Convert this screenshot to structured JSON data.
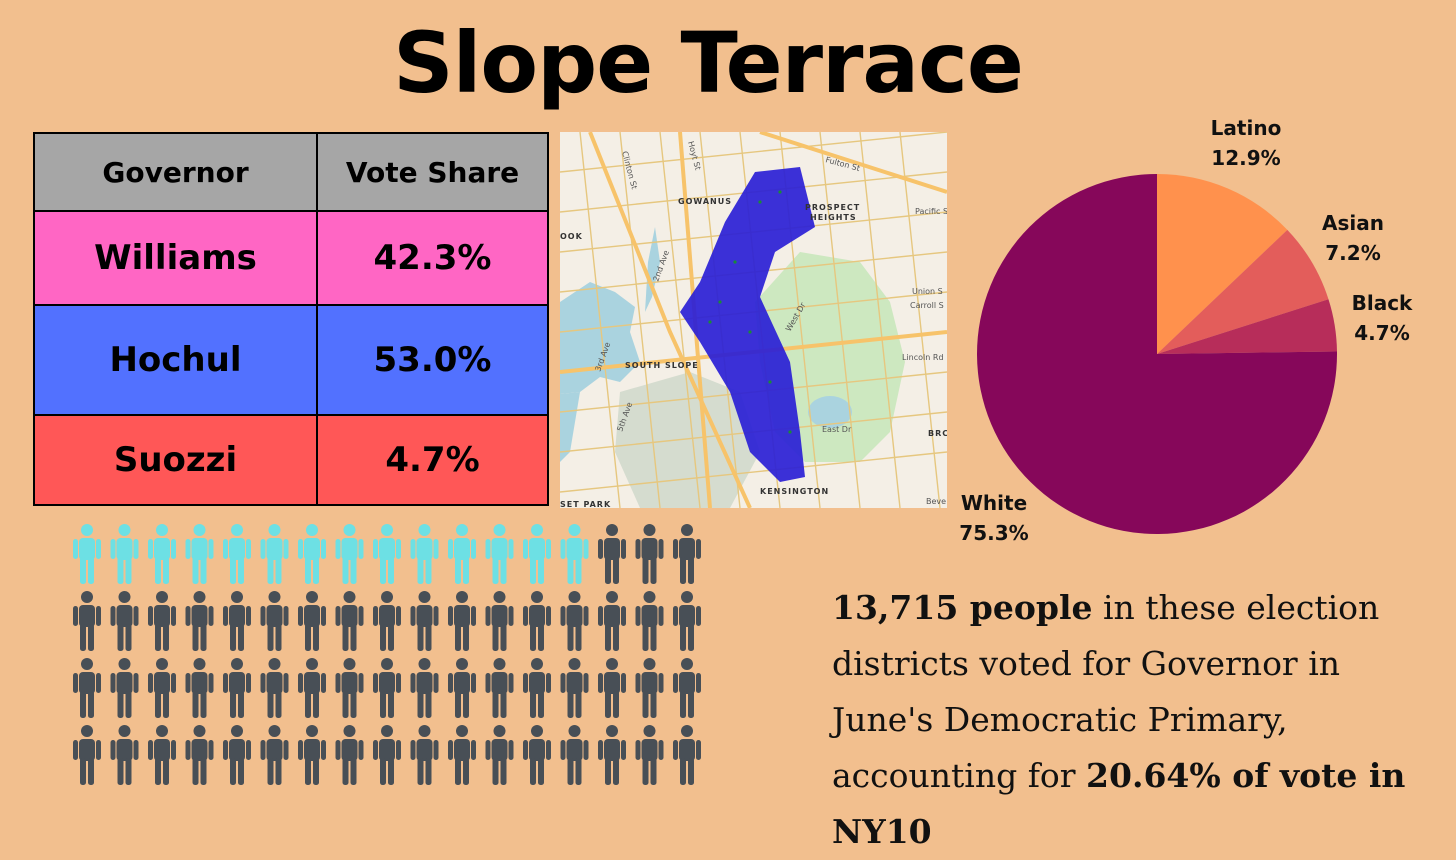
{
  "title": "Slope Terrace",
  "table": {
    "headers": [
      "Governor",
      "Vote Share"
    ],
    "rows": [
      {
        "name": "Williams",
        "share": "42.3%",
        "color": "#ff66c4"
      },
      {
        "name": "Hochul",
        "share": "53.0%",
        "color": "#5271ff"
      },
      {
        "name": "Suozzi",
        "share": "4.7%",
        "color": "#ff5757"
      }
    ],
    "header_color": "#a6a6a6"
  },
  "map": {
    "labels": [
      "Fulton St",
      "GOWANUS",
      "PROSPECT",
      "HEIGHTS",
      "Pacific S",
      "Union S",
      "Carroll S",
      "Lincoln Rd",
      "SOUTH SLOPE",
      "West Dr",
      "East Dr",
      "BRC",
      "KENSINGTON",
      "SET PARK",
      "Hoyt St",
      "Clinton St",
      "2nd Ave",
      "3rd Ave",
      "5th Ave",
      "OOK",
      "Beve"
    ]
  },
  "chart_data": {
    "type": "pie",
    "title": "",
    "slices": [
      {
        "label": "Latino",
        "value": 12.9,
        "display": "12.9%",
        "color": "#ff914d"
      },
      {
        "label": "Asian",
        "value": 7.2,
        "display": "7.2%",
        "color": "#e35d5b"
      },
      {
        "label": "Black",
        "value": 4.7,
        "display": "4.7%",
        "color": "#b72d5a"
      },
      {
        "label": "White",
        "value": 75.3,
        "display": "75.3%",
        "color": "#86075a"
      }
    ]
  },
  "people": {
    "total": 68,
    "highlighted": 14,
    "highlight_color": "#6de0e4",
    "base_color": "#484f56"
  },
  "caption": {
    "voters_bold": "13,715 people",
    "text1": " in these election districts voted for Governor in June's Democratic Primary, accounting for ",
    "share_bold": "20.64% of vote in NY10"
  }
}
